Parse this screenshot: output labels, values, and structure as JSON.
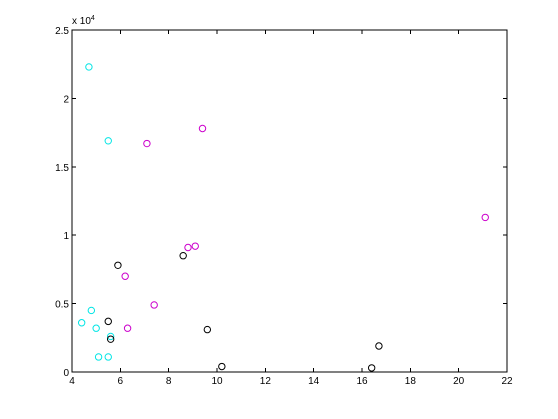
{
  "chart_data": {
    "type": "scatter",
    "title": "",
    "xlabel": "",
    "ylabel": "",
    "xlim": [
      4,
      22
    ],
    "ylim": [
      0,
      25000
    ],
    "x_ticks": [
      4,
      6,
      8,
      10,
      12,
      14,
      16,
      18,
      20,
      22
    ],
    "y_ticks": [
      0,
      5000,
      10000,
      15000,
      20000,
      25000
    ],
    "x_tick_labels": [
      "4",
      "6",
      "8",
      "10",
      "12",
      "14",
      "16",
      "18",
      "20",
      "22"
    ],
    "y_tick_labels": [
      "0",
      "0.5",
      "1",
      "1.5",
      "2",
      "2.5"
    ],
    "y_exponent_label": {
      "base": "x 10",
      "power": "4"
    },
    "grid": false,
    "marker": "open-circle",
    "series": [
      {
        "color": "#00e5e5",
        "points": [
          {
            "x": 4.7,
            "y": 22300
          },
          {
            "x": 5.5,
            "y": 16900
          },
          {
            "x": 4.8,
            "y": 4500
          },
          {
            "x": 4.4,
            "y": 3600
          },
          {
            "x": 5.0,
            "y": 3200
          },
          {
            "x": 5.6,
            "y": 2600
          },
          {
            "x": 5.1,
            "y": 1100
          },
          {
            "x": 5.5,
            "y": 1100
          }
        ]
      },
      {
        "color": "#cc00cc",
        "points": [
          {
            "x": 9.4,
            "y": 17800
          },
          {
            "x": 7.1,
            "y": 16700
          },
          {
            "x": 21.1,
            "y": 11300
          },
          {
            "x": 9.1,
            "y": 9200
          },
          {
            "x": 8.8,
            "y": 9100
          },
          {
            "x": 6.2,
            "y": 7000
          },
          {
            "x": 7.4,
            "y": 4900
          },
          {
            "x": 6.3,
            "y": 3200
          }
        ]
      },
      {
        "color": "#000000",
        "points": [
          {
            "x": 5.9,
            "y": 7800
          },
          {
            "x": 8.6,
            "y": 8500
          },
          {
            "x": 5.5,
            "y": 3700
          },
          {
            "x": 5.6,
            "y": 2400
          },
          {
            "x": 9.6,
            "y": 3100
          },
          {
            "x": 16.7,
            "y": 1900
          },
          {
            "x": 10.2,
            "y": 400
          },
          {
            "x": 16.4,
            "y": 300
          }
        ]
      }
    ]
  }
}
